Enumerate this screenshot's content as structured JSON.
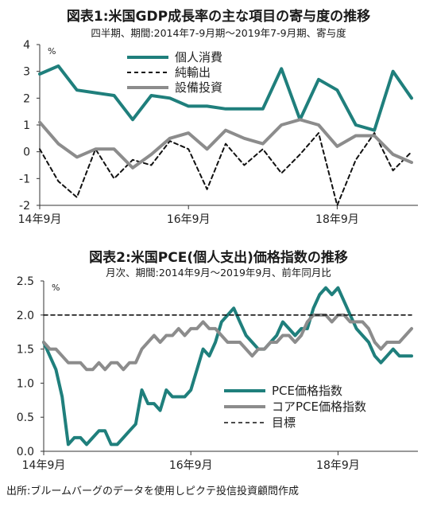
{
  "chart1": {
    "title": "図表1:米国GDP成長率の主な項目の寄与度の推移",
    "subtitle": "四半期、期間:2014年7-9月期～2019年7-9月期、寄与度",
    "unit": "%",
    "chart_data": {
      "type": "line",
      "y_ticks": [
        "4",
        "3",
        "2",
        "1",
        "0",
        "-1",
        "-2"
      ],
      "ylim": [
        -2,
        4
      ],
      "x_tick_labels": [
        {
          "label": "14年9月",
          "index": 0
        },
        {
          "label": "16年9月",
          "index": 8
        },
        {
          "label": "18年9月",
          "index": 16
        }
      ],
      "series": [
        {
          "name": "個人消費",
          "color": "#1f7f7c",
          "dash": "solid",
          "width": 4,
          "values": [
            2.9,
            3.2,
            2.3,
            2.2,
            2.1,
            1.2,
            2.1,
            2.0,
            1.7,
            1.7,
            1.6,
            1.6,
            1.6,
            3.1,
            1.2,
            2.7,
            2.3,
            1.0,
            0.8,
            3.0,
            2.0
          ]
        },
        {
          "name": "純輸出",
          "color": "#111111",
          "dash": "dashed",
          "width": 2,
          "values": [
            0.1,
            -1.1,
            -1.7,
            0.1,
            -1.0,
            -0.3,
            -0.5,
            0.4,
            0.1,
            -1.4,
            0.3,
            -0.5,
            0.1,
            -0.8,
            -0.1,
            0.7,
            -2.0,
            -0.3,
            0.7,
            -0.7,
            0.0
          ]
        },
        {
          "name": "設備投資",
          "color": "#8c8c8c",
          "dash": "solid",
          "width": 4,
          "values": [
            1.1,
            0.3,
            -0.2,
            0.1,
            0.1,
            -0.6,
            -0.1,
            0.5,
            0.7,
            0.1,
            0.8,
            0.5,
            0.3,
            1.0,
            1.2,
            1.0,
            0.2,
            0.6,
            0.6,
            -0.1,
            -0.4
          ]
        }
      ]
    }
  },
  "chart2": {
    "title": "図表2:米国PCE(個人支出)価格指数の推移",
    "subtitle": "月次、期間:2014年9月～2019年9月、前年同月比",
    "unit": "%",
    "chart_data": {
      "type": "line",
      "y_ticks": [
        "2.5",
        "2.0",
        "1.5",
        "1.0",
        "0.5",
        "0.0"
      ],
      "ylim": [
        0,
        2.5
      ],
      "x_tick_labels": [
        {
          "label": "14年9月",
          "index": 0
        },
        {
          "label": "16年9月",
          "index": 24
        },
        {
          "label": "18年9月",
          "index": 48
        }
      ],
      "series": [
        {
          "name": "PCE価格指数",
          "color": "#1f7f7c",
          "dash": "solid",
          "width": 4,
          "values": [
            1.6,
            1.4,
            1.2,
            0.8,
            0.1,
            0.2,
            0.2,
            0.1,
            0.2,
            0.3,
            0.3,
            0.1,
            0.1,
            0.2,
            0.3,
            0.4,
            0.9,
            0.7,
            0.7,
            0.6,
            0.9,
            0.8,
            0.8,
            0.8,
            0.9,
            1.2,
            1.5,
            1.4,
            1.6,
            1.9,
            2.0,
            2.1,
            1.9,
            1.7,
            1.6,
            1.5,
            1.5,
            1.6,
            1.7,
            1.9,
            1.8,
            1.7,
            1.8,
            1.8,
            2.1,
            2.3,
            2.4,
            2.3,
            2.4,
            2.2,
            2.0,
            1.8,
            1.7,
            1.6,
            1.4,
            1.3,
            1.4,
            1.5,
            1.4,
            1.4,
            1.4
          ]
        },
        {
          "name": "コアPCE価格指数",
          "color": "#8c8c8c",
          "dash": "solid",
          "width": 4,
          "values": [
            1.6,
            1.5,
            1.5,
            1.4,
            1.3,
            1.3,
            1.3,
            1.2,
            1.2,
            1.3,
            1.2,
            1.3,
            1.3,
            1.2,
            1.3,
            1.3,
            1.5,
            1.6,
            1.7,
            1.6,
            1.7,
            1.7,
            1.8,
            1.7,
            1.8,
            1.8,
            1.9,
            1.8,
            1.8,
            1.7,
            1.6,
            1.6,
            1.6,
            1.5,
            1.4,
            1.5,
            1.5,
            1.6,
            1.6,
            1.7,
            1.7,
            1.6,
            1.7,
            1.9,
            2.0,
            2.0,
            2.0,
            1.9,
            2.0,
            2.0,
            1.9,
            1.9,
            1.9,
            1.8,
            1.6,
            1.5,
            1.6,
            1.6,
            1.6,
            1.7,
            1.8
          ]
        },
        {
          "name": "目標",
          "color": "#111111",
          "dash": "dashed",
          "width": 1.6,
          "values": [
            2.0,
            2.0
          ]
        }
      ]
    }
  },
  "source": "出所:ブルームバーグのデータを使用しピクテ投信投資顧問作成"
}
